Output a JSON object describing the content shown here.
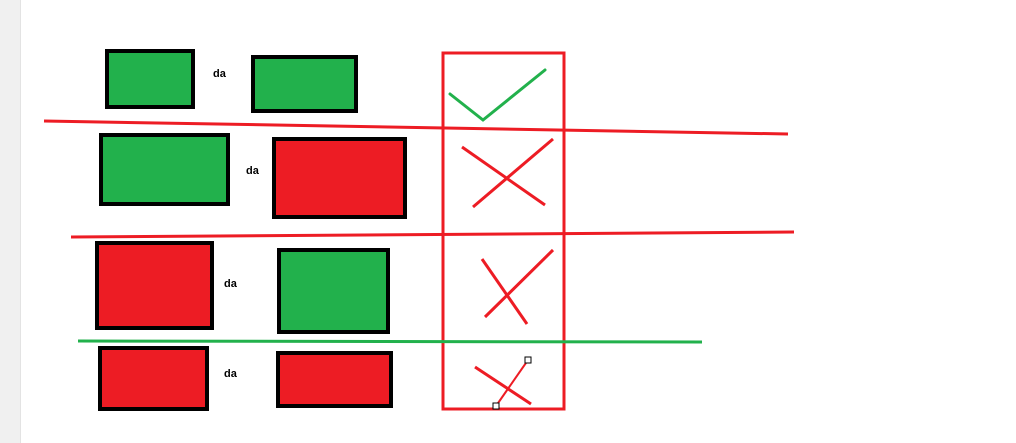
{
  "colors": {
    "green": "#22b14c",
    "red": "#ed1c24",
    "outline": "#000000",
    "background": "#ffffff",
    "handle_fill": "#ffffff"
  },
  "rows": [
    {
      "left_box": "green",
      "label": "da",
      "right_box": "green",
      "mark": "check"
    },
    {
      "left_box": "green",
      "label": "da",
      "right_box": "red",
      "mark": "cross"
    },
    {
      "left_box": "red",
      "label": "da",
      "right_box": "green",
      "mark": "cross"
    },
    {
      "left_box": "red",
      "label": "da",
      "right_box": "red",
      "mark": "cross"
    }
  ],
  "separators": [
    "red",
    "red",
    "green"
  ],
  "result_column": {
    "outline_color": "red"
  },
  "selection": {
    "active": true,
    "target": "last-cross-stroke"
  }
}
